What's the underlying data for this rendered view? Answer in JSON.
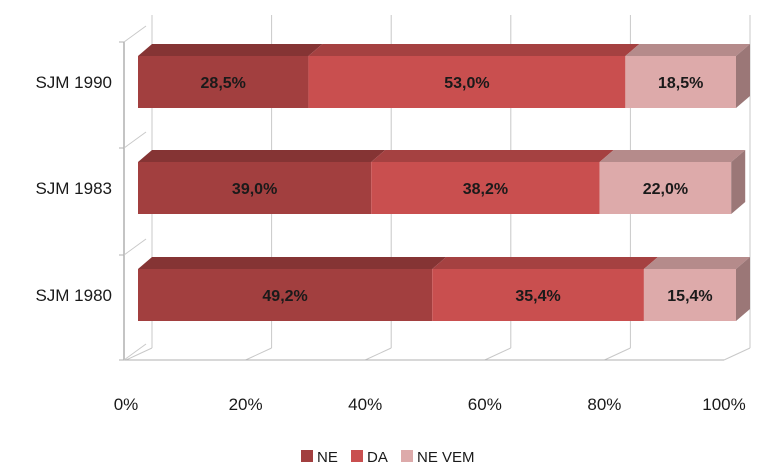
{
  "chart_data": {
    "type": "bar",
    "orientation": "horizontal",
    "stacked": "percent",
    "three_d": true,
    "categories": [
      "SJM 1980",
      "SJM 1983",
      "SJM 1990"
    ],
    "series": [
      {
        "name": "NE",
        "color": "#a23f3f",
        "values": [
          49.2,
          39.0,
          28.5
        ],
        "labels": [
          "49,2%",
          "39,0%",
          "28,5%"
        ]
      },
      {
        "name": "DA",
        "color": "#c94f4f",
        "values": [
          35.4,
          38.2,
          53.0
        ],
        "labels": [
          "35,4%",
          "38,2%",
          "53,0%"
        ]
      },
      {
        "name": "NE VEM",
        "color": "#ddaaaa",
        "values": [
          15.4,
          22.0,
          18.5
        ],
        "labels": [
          "15,4%",
          "22,0%",
          "18,5%"
        ]
      }
    ],
    "x_ticks": [
      "0%",
      "20%",
      "40%",
      "60%",
      "80%",
      "100%"
    ],
    "xlim": [
      0,
      100
    ],
    "grid": true,
    "legend_position": "bottom"
  }
}
